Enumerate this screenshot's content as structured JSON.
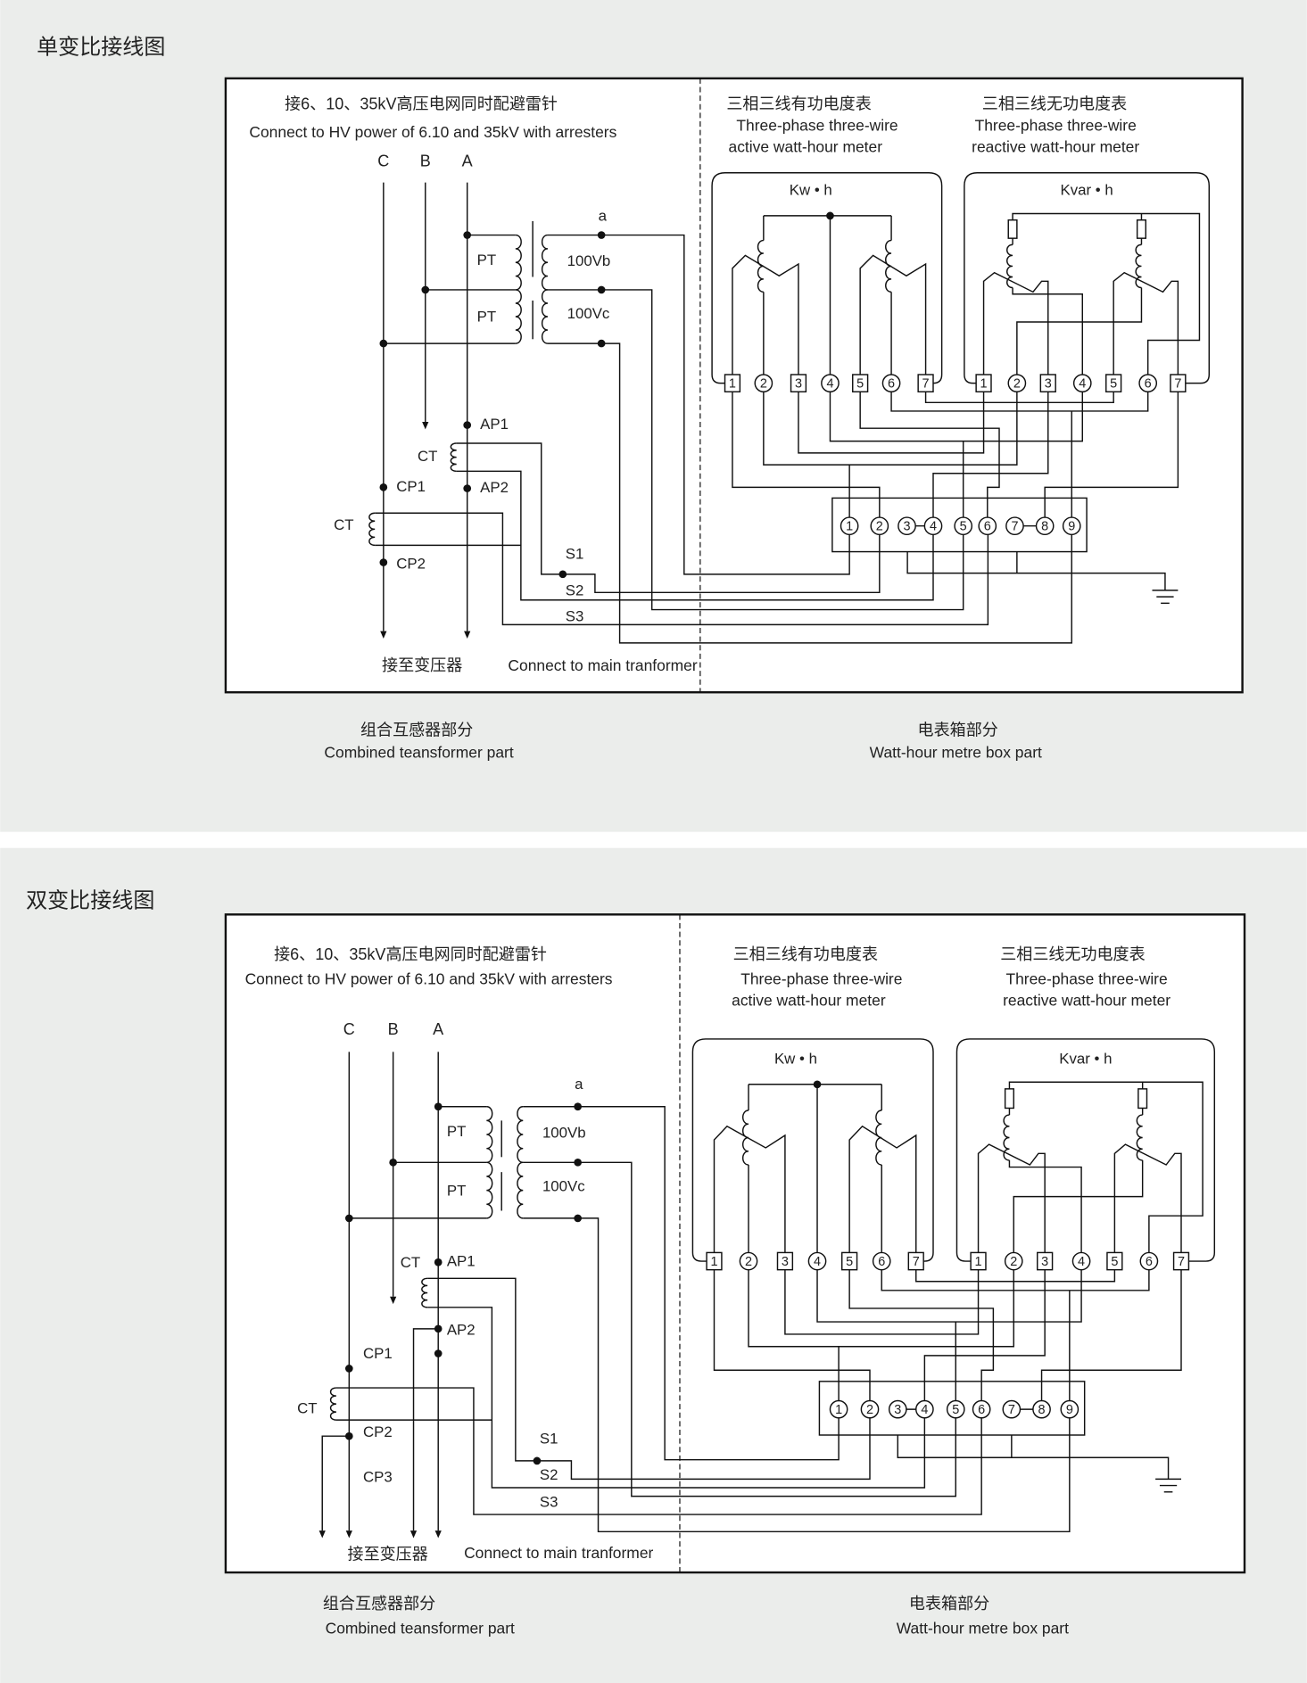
{
  "sections": [
    {
      "title": "单变比接线图",
      "hv_cn": "接6、10、35kV高压电网同时配避雷针",
      "hv_en": "Connect to HV power of 6.10 and 35kV with arresters",
      "phases": [
        "C",
        "B",
        "A"
      ],
      "pt": "PT",
      "pt_secondary": [
        "100Vb",
        "100Vc"
      ],
      "a": "a",
      "labels": {
        "ap1": "AP1",
        "ap2": "AP2",
        "ct": "CT",
        "cp1": "CP1",
        "cp2": "CP2",
        "s1": "S1",
        "s2": "S2",
        "s3": "S3"
      },
      "to_transformer_cn": "接至变压器",
      "to_transformer_en": "Connect to main tranformer",
      "active_meter": {
        "cn": "三相三线有功电度表",
        "en1": "Three-phase three-wire",
        "en2": "active watt-hour meter",
        "unit": "Kw • h"
      },
      "reactive_meter": {
        "cn": "三相三线无功电度表",
        "en1": "Three-phase three-wire",
        "en2": "reactive watt-hour meter",
        "unit": "Kvar • h"
      },
      "left_part": {
        "cn": "组合互感器部分",
        "en": "Combined teansformer part"
      },
      "right_part": {
        "cn": "电表箱部分",
        "en": "Watt-hour metre box part"
      }
    },
    {
      "title": "双变比接线图",
      "hv_cn": "接6、10、35kV高压电网同时配避雷针",
      "hv_en": "Connect to HV power of 6.10 and 35kV with arresters",
      "phases": [
        "C",
        "B",
        "A"
      ],
      "pt": "PT",
      "pt_secondary": [
        "100Vb",
        "100Vc"
      ],
      "a": "a",
      "labels": {
        "ap1": "AP1",
        "ap2": "AP2",
        "ct": "CT",
        "cp1": "CP1",
        "cp2": "CP2",
        "cp3": "CP3",
        "s1": "S1",
        "s2": "S2",
        "s3": "S3"
      },
      "to_transformer_cn": "接至变压器",
      "to_transformer_en": "Connect to main tranformer",
      "active_meter": {
        "cn": "三相三线有功电度表",
        "en1": "Three-phase three-wire",
        "en2": "active watt-hour meter",
        "unit": "Kw • h"
      },
      "reactive_meter": {
        "cn": "三相三线无功电度表",
        "en1": "Three-phase three-wire",
        "en2": "reactive watt-hour meter",
        "unit": "Kvar • h"
      },
      "left_part": {
        "cn": "组合互感器部分",
        "en": "Combined teansformer part"
      },
      "right_part": {
        "cn": "电表箱部分",
        "en": "Watt-hour metre box part"
      }
    }
  ],
  "meter_terminals": [
    "1",
    "2",
    "3",
    "4",
    "5",
    "6",
    "7"
  ],
  "junction_terminals": [
    "1",
    "2",
    "3",
    "4",
    "5",
    "6",
    "7",
    "8",
    "9"
  ],
  "colors": {
    "panel_background": "#ebedeb",
    "line": "#111111",
    "box": "#ffffff"
  }
}
